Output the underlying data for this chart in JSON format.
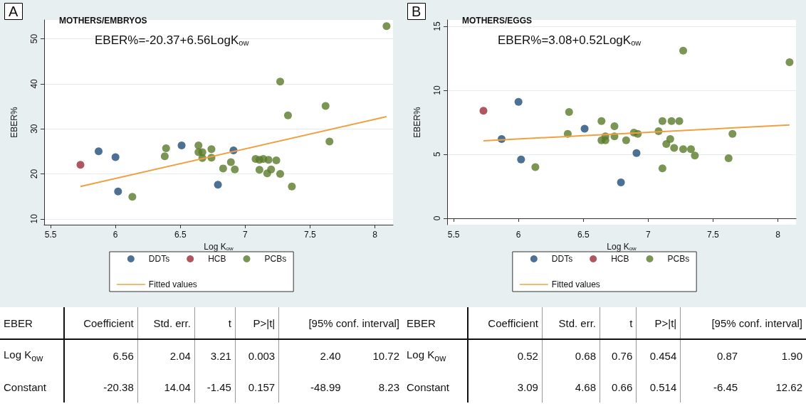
{
  "chart_data": [
    {
      "type": "scatter",
      "title": "MOTHERS/EMBRYOS",
      "annotations": [
        "A",
        "EBER%=-20.37+6.56LogK$_{ow}$"
      ],
      "xlabel": "Log K$_{ow}$",
      "ylabel": "EBER%",
      "xlim": [
        5.45,
        8.14
      ],
      "xticks": [
        5.5,
        6,
        6.5,
        7,
        7.5,
        8
      ],
      "ylim": [
        8.7,
        54.2
      ],
      "yticks": [
        10,
        20,
        30,
        40,
        50
      ],
      "grid": "y",
      "legend": "bottom",
      "marker": "circle",
      "series": [
        {
          "name": "DDTs",
          "color": "#1f4e79",
          "x": [
            5.87,
            6.0,
            6.02,
            6.51,
            6.79,
            6.91
          ],
          "values": [
            25.0,
            23.7,
            16.1,
            26.3,
            17.6,
            25.2
          ]
        },
        {
          "name": "HCB",
          "color": "#9b2d3a",
          "x": [
            5.73
          ],
          "values": [
            22.0
          ]
        },
        {
          "name": "PCBs",
          "color": "#5a7a2a",
          "x": [
            6.13,
            6.38,
            6.39,
            6.64,
            6.64,
            6.67,
            6.67,
            6.74,
            6.74,
            6.83,
            6.89,
            6.92,
            7.08,
            7.11,
            7.14,
            7.11,
            7.18,
            7.17,
            7.2,
            7.24,
            7.27,
            7.27,
            7.33,
            7.36,
            7.62,
            7.65,
            8.09
          ],
          "values": [
            14.9,
            23.9,
            25.7,
            26.3,
            24.8,
            24.8,
            23.5,
            25.5,
            23.6,
            21.2,
            22.6,
            21.0,
            23.3,
            23.1,
            23.3,
            20.9,
            23.1,
            20.1,
            21.0,
            23.0,
            40.5,
            20.0,
            33.0,
            17.2,
            35.1,
            27.2,
            52.8
          ]
        },
        {
          "name": "Fitted values",
          "type": "line",
          "marker": "none",
          "color": "#f0a040",
          "x": [
            5.73,
            8.09
          ],
          "values": [
            17.2,
            32.7
          ]
        }
      ]
    },
    {
      "type": "scatter",
      "title": "MOTHERS/EGGS",
      "annotations": [
        "B",
        "EBER%=3.08+0.52LogK$_{ow}$"
      ],
      "xlabel": "Log K$_{ow}$",
      "ylabel": "EBER%",
      "xlim": [
        5.45,
        8.14
      ],
      "xticks": [
        5.5,
        6,
        6.5,
        7,
        7.5,
        8
      ],
      "ylim": [
        -0.5,
        15.5
      ],
      "yticks": [
        0,
        5,
        10,
        15
      ],
      "grid": "y",
      "legend": "bottom",
      "marker": "circle",
      "series": [
        {
          "name": "DDTs",
          "color": "#1f4e79",
          "x": [
            5.87,
            6.0,
            6.02,
            6.51,
            6.79,
            6.91
          ],
          "values": [
            6.2,
            9.1,
            4.6,
            7.0,
            2.8,
            5.1
          ]
        },
        {
          "name": "HCB",
          "color": "#9b2d3a",
          "x": [
            5.73
          ],
          "values": [
            8.4
          ]
        },
        {
          "name": "PCBs",
          "color": "#5a7a2a",
          "x": [
            6.13,
            6.38,
            6.39,
            6.64,
            6.64,
            6.67,
            6.67,
            6.74,
            6.74,
            6.83,
            6.89,
            6.92,
            7.08,
            7.11,
            7.11,
            7.14,
            7.17,
            7.18,
            7.2,
            7.24,
            7.27,
            7.27,
            7.33,
            7.36,
            7.62,
            7.65,
            8.09
          ],
          "values": [
            4.0,
            6.6,
            8.3,
            7.6,
            6.1,
            6.4,
            6.1,
            7.2,
            6.4,
            6.1,
            6.7,
            6.6,
            6.8,
            7.6,
            3.9,
            5.8,
            6.2,
            7.6,
            5.5,
            7.6,
            13.1,
            5.4,
            5.4,
            4.9,
            4.7,
            6.6,
            12.2
          ]
        },
        {
          "name": "Fitted values",
          "type": "line",
          "marker": "none",
          "color": "#f0a040",
          "x": [
            5.73,
            8.09
          ],
          "values": [
            6.06,
            7.29
          ]
        }
      ]
    },
    {
      "type": "other",
      "categories": [
        "EBER",
        "Coefficient",
        "Std. err.",
        "t",
        "P>|t|",
        "[95% conf. interval]"
      ],
      "cell_labels": [
        [
          "Log K$_{ow}$",
          "6.56",
          "2.04",
          "3.21",
          "0.003",
          "2.40",
          "10.72"
        ],
        [
          "Constant",
          "-20.38",
          "14.04",
          "-1.45",
          "0.157",
          "-48.99",
          "8.23"
        ]
      ]
    },
    {
      "type": "other",
      "categories": [
        "EBER",
        "Coefficient",
        "Std. err.",
        "t",
        "P>|t|",
        "[95% conf. interval]"
      ],
      "cell_labels": [
        [
          "Log K$_{ow}$",
          "0.52",
          "0.68",
          "0.76",
          "0.454",
          "0.87",
          "1.90"
        ],
        [
          "Constant",
          "3.09",
          "4.68",
          "0.66",
          "0.514",
          "-6.45",
          "12.62"
        ]
      ]
    }
  ]
}
